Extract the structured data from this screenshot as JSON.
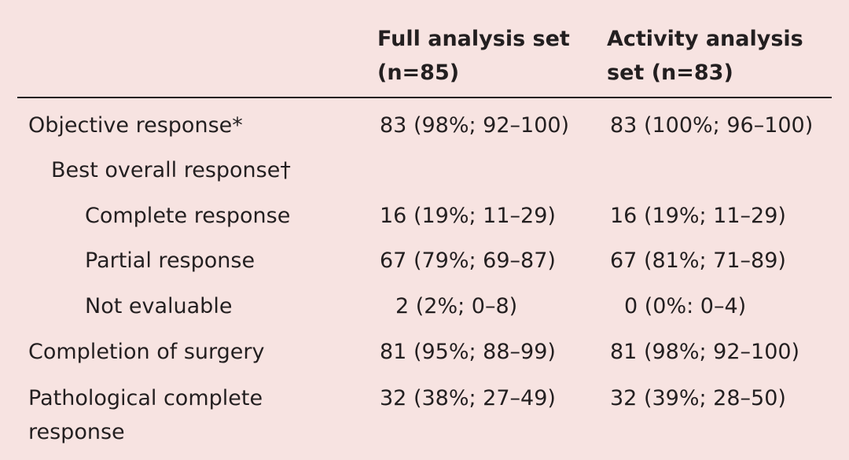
{
  "table": {
    "headers": {
      "col1_line1": "Full analysis set",
      "col1_line2": "(n=85)",
      "col2_line1": "Activity analysis",
      "col2_line2": "set (n=83)"
    },
    "rows": [
      {
        "label": "Objective response*",
        "full": "83 (98%; 92–100)",
        "activity": "83 (100%; 96–100)"
      },
      {
        "label": "Best overall response†",
        "full": "",
        "activity": ""
      },
      {
        "label": "Complete response",
        "full": "16 (19%; 11–29)",
        "activity": "16 (19%; 11–29)"
      },
      {
        "label": "Partial response",
        "full": "67 (79%; 69–87)",
        "activity": "67 (81%; 71–89)"
      },
      {
        "label": "Not evaluable",
        "full": "2 (2%; 0–8)",
        "activity": "0 (0%: 0–4)"
      },
      {
        "label": "Completion of surgery",
        "full": "81 (95%; 88–99)",
        "activity": "81 (98%; 92–100)"
      },
      {
        "label_line1": "Pathological complete",
        "label_line2": "response",
        "full": "32 (38%; 27–49)",
        "activity": "32 (39%; 28–50)"
      }
    ]
  }
}
